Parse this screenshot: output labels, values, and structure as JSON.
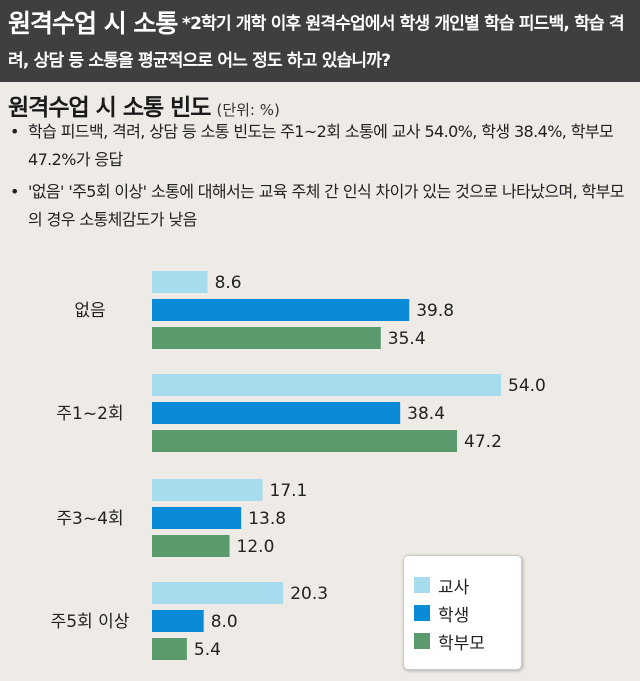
{
  "header": {
    "title": "원격수업 시 소통",
    "question": "*2학기 개학 이후 원격수업에서 학생 개인별 학습 피드백, 학습 격려, 상담 등 소통을 평균적으로 어느 정도 하고 있습니까?"
  },
  "subtitle": {
    "title": "원격수업 시 소통 빈도",
    "unit": "(단위: %)"
  },
  "notes": [
    "학습 피드백, 격려, 상담 등 소통 빈도는 주1~2회 소통에 교사 54.0%, 학생 38.4%, 학부모 47.2%가 응답",
    "'없음' '주5회 이상' 소통에 대해서는 교육 주체 간 인식 차이가 있는 것으로 나타났으며, 학부모의 경우 소통체감도가 낮음"
  ],
  "bullet": "•",
  "chart_data": {
    "type": "bar",
    "orientation": "horizontal",
    "categories": [
      "없음",
      "주1~2회",
      "주3~4회",
      "주5회 이상"
    ],
    "series": [
      {
        "name": "교사",
        "values": [
          8.6,
          54.0,
          17.1,
          20.3
        ],
        "color": "#a7dcee"
      },
      {
        "name": "학생",
        "values": [
          39.8,
          38.4,
          13.8,
          8.0
        ],
        "color": "#0a8bd8"
      },
      {
        "name": "학부모",
        "values": [
          35.4,
          47.2,
          12.0,
          5.4
        ],
        "color": "#5b9a6c"
      }
    ],
    "xlim": [
      0,
      54
    ],
    "value_labels": [
      [
        "8.6",
        "39.8",
        "35.4"
      ],
      [
        "54.0",
        "38.4",
        "47.2"
      ],
      [
        "17.1",
        "13.8",
        "12.0"
      ],
      [
        "20.3",
        "8.0",
        "5.4"
      ]
    ],
    "grid": false,
    "legend_position": "bottom-right"
  }
}
